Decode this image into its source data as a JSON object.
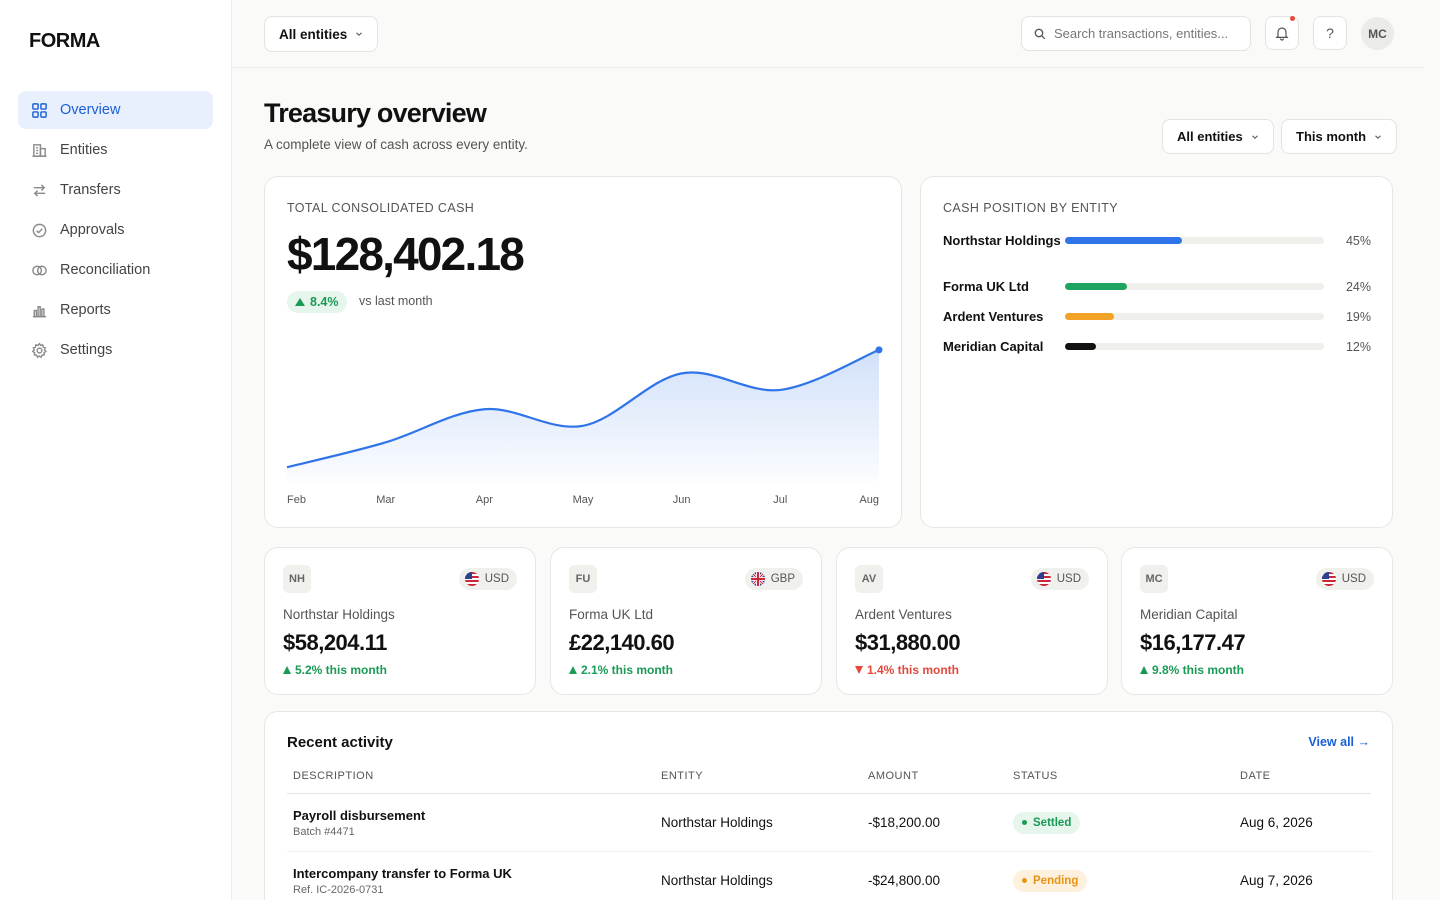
{
  "app": {
    "logo": "FORMA"
  },
  "sidebar": {
    "items": [
      {
        "label": "Overview",
        "icon": "grid-icon",
        "active": true
      },
      {
        "label": "Entities",
        "icon": "building-icon"
      },
      {
        "label": "Transfers",
        "icon": "arrows-icon"
      },
      {
        "label": "Approvals",
        "icon": "check-circle-icon"
      },
      {
        "label": "Reconciliation",
        "icon": "rings-icon"
      },
      {
        "label": "Reports",
        "icon": "bar-chart-icon"
      },
      {
        "label": "Settings",
        "icon": "gear-icon"
      }
    ]
  },
  "topbar": {
    "entity_select": "All entities",
    "search_placeholder": "Search transactions, entities...",
    "help_label": "?",
    "avatar_initials": "MC"
  },
  "header": {
    "title": "Treasury overview",
    "subtitle": "A complete view of cash across every entity.",
    "entity_filter": "All entities",
    "period_filter": "This month"
  },
  "total": {
    "label": "Total consolidated cash",
    "amount": "$128,402.18",
    "trend": "8.4%",
    "trend_note": "vs last month"
  },
  "chart_data": {
    "type": "area",
    "categories": [
      "Feb",
      "Mar",
      "Apr",
      "May",
      "Jun",
      "Jul",
      "Aug"
    ],
    "values": [
      10,
      28,
      52,
      40,
      78,
      66,
      95
    ],
    "ylim": [
      0,
      100
    ],
    "color": "#2f74e8",
    "grid": false
  },
  "position": {
    "label": "Cash position by entity",
    "rows": [
      {
        "name": "Northstar Holdings",
        "pct": "45%",
        "value": 0.45,
        "color": "#2f74e8"
      },
      {
        "name": "Forma UK Ltd",
        "pct": "24%",
        "value": 0.24,
        "color": "#1fa360"
      },
      {
        "name": "Ardent Ventures",
        "pct": "19%",
        "value": 0.19,
        "color": "#f2a224"
      },
      {
        "name": "Meridian Capital",
        "pct": "12%",
        "value": 0.12,
        "color": "#111111"
      }
    ]
  },
  "entities": [
    {
      "initials": "NH",
      "currency": "USD",
      "flag": "us-flag-icon",
      "name": "Northstar Holdings",
      "amount": "$58,204.11",
      "trend": "5.2% this month",
      "direction": "up"
    },
    {
      "initials": "FU",
      "currency": "GBP",
      "flag": "uk-flag-icon",
      "name": "Forma UK Ltd",
      "amount": "£22,140.60",
      "trend": "2.1% this month",
      "direction": "up"
    },
    {
      "initials": "AV",
      "currency": "USD",
      "flag": "us-flag-icon",
      "name": "Ardent Ventures",
      "amount": "$31,880.00",
      "trend": "1.4% this month",
      "direction": "down"
    },
    {
      "initials": "MC",
      "currency": "USD",
      "flag": "us-flag-icon",
      "name": "Meridian Capital",
      "amount": "$16,177.47",
      "trend": "9.8% this month",
      "direction": "up"
    }
  ],
  "activity": {
    "title": "Recent activity",
    "view_all": "View all →",
    "columns": [
      "Description",
      "Entity",
      "Amount",
      "Status",
      "Date"
    ],
    "rows": [
      {
        "description": "Payroll disbursement",
        "ref": "Batch #4471",
        "entity": "Northstar Holdings",
        "amount": "-$18,200.00",
        "status": "Settled",
        "date": "Aug 6, 2026"
      },
      {
        "description": "Intercompany transfer to Forma UK",
        "ref": "Ref. IC-2026-0731",
        "entity": "Northstar Holdings",
        "amount": "-$24,800.00",
        "status": "Pending",
        "date": "Aug 7, 2026"
      }
    ]
  }
}
